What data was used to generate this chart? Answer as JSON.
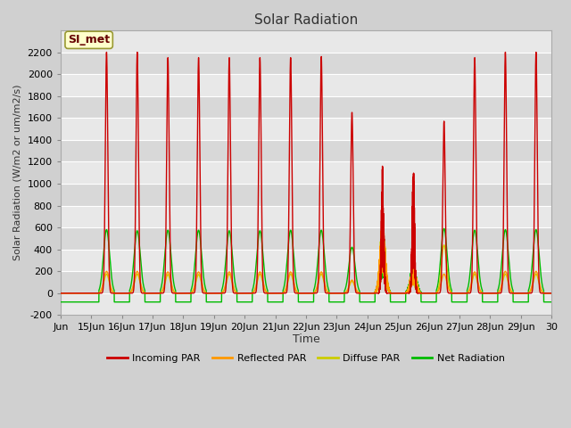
{
  "title": "Solar Radiation",
  "ylabel": "Solar Radiation (W/m2 or um/m2/s)",
  "xlabel": "Time",
  "xlim_days": [
    14,
    30
  ],
  "ylim": [
    -200,
    2400
  ],
  "yticks": [
    -200,
    0,
    200,
    400,
    600,
    800,
    1000,
    1200,
    1400,
    1600,
    1800,
    2000,
    2200
  ],
  "xtick_labels": [
    "Jun",
    "15Jun",
    "16Jun",
    "17Jun",
    "18Jun",
    "19Jun",
    "20Jun",
    "21Jun",
    "22Jun",
    "23Jun",
    "24Jun",
    "25Jun",
    "26Jun",
    "27Jun",
    "28Jun",
    "29Jun",
    "30"
  ],
  "xtick_positions": [
    14,
    15,
    16,
    17,
    18,
    19,
    20,
    21,
    22,
    23,
    24,
    25,
    26,
    27,
    28,
    29,
    30
  ],
  "fig_bg_color": "#d0d0d0",
  "plot_bg_color": "#e8e8e8",
  "band_colors": [
    "#e8e8e8",
    "#d8d8d8"
  ],
  "series_colors": {
    "incoming": "#cc0000",
    "reflected": "#ff9900",
    "diffuse": "#cccc00",
    "net": "#00bb00"
  },
  "legend_label": "SI_met",
  "series_labels": [
    "Incoming PAR",
    "Reflected PAR",
    "Diffuse PAR",
    "Net Radiation"
  ],
  "line_width": 1.0,
  "title_fontsize": 11,
  "axis_label_fontsize": 8,
  "tick_fontsize": 8
}
